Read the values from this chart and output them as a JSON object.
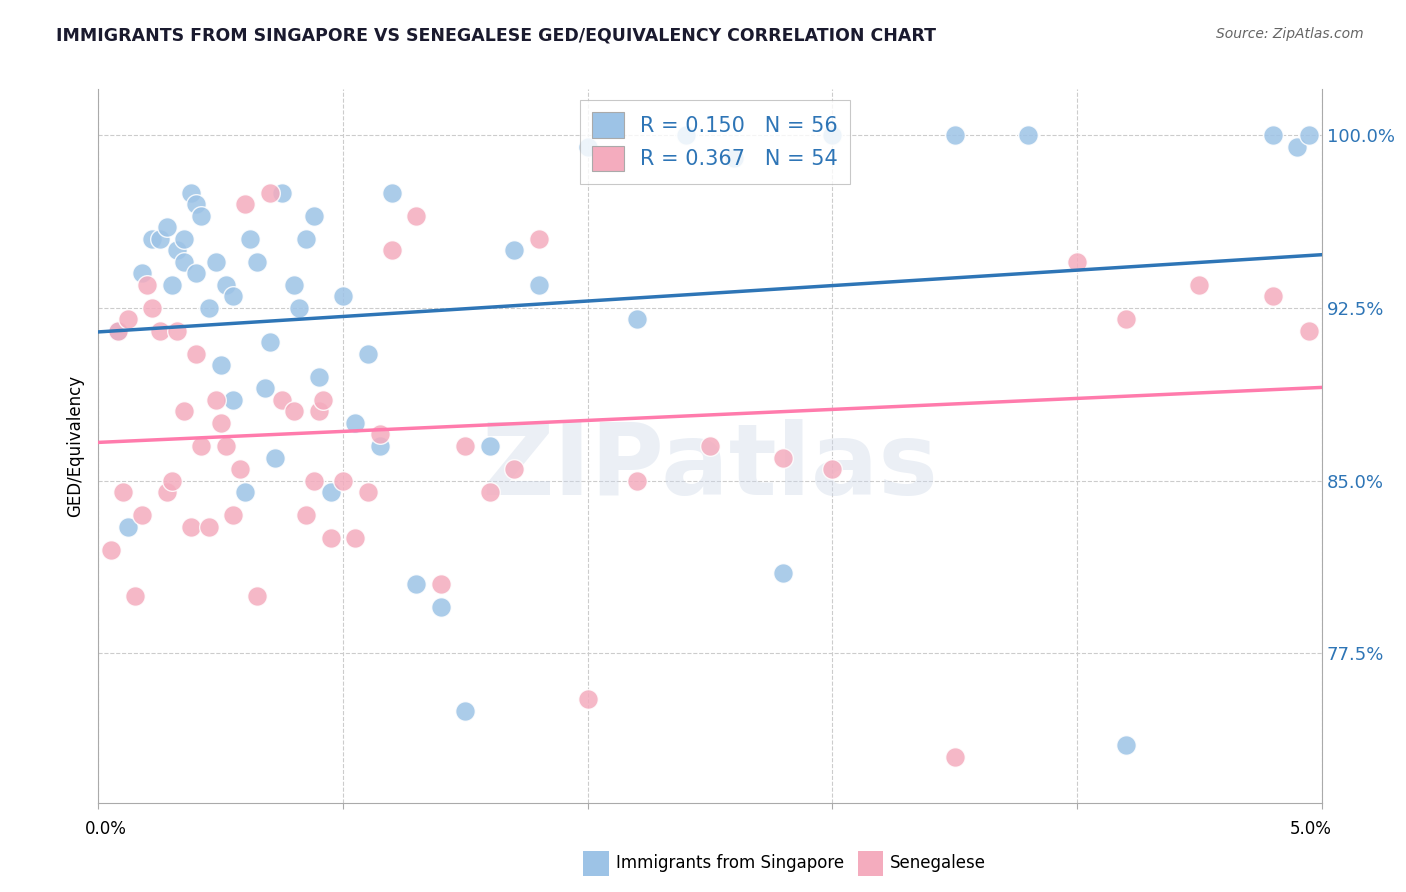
{
  "title": "IMMIGRANTS FROM SINGAPORE VS SENEGALESE GED/EQUIVALENCY CORRELATION CHART",
  "source": "Source: ZipAtlas.com",
  "ylabel": "GED/Equivalency",
  "xmin": 0.0,
  "xmax": 5.0,
  "ymin": 71.0,
  "ymax": 102.0,
  "color_blue": "#9DC3E6",
  "color_pink": "#F4ACBE",
  "line_blue": "#2E75B6",
  "line_pink": "#FF7BAC",
  "R_blue": 0.15,
  "N_blue": 56,
  "R_pink": 0.367,
  "N_pink": 54,
  "legend_label_blue": "Immigrants from Singapore",
  "legend_label_pink": "Senegalese",
  "blue_x": [
    0.08,
    0.12,
    0.18,
    0.22,
    0.25,
    0.28,
    0.3,
    0.32,
    0.35,
    0.35,
    0.38,
    0.4,
    0.4,
    0.42,
    0.45,
    0.48,
    0.5,
    0.52,
    0.55,
    0.55,
    0.6,
    0.62,
    0.65,
    0.68,
    0.7,
    0.72,
    0.75,
    0.8,
    0.82,
    0.85,
    0.88,
    0.9,
    0.95,
    1.0,
    1.05,
    1.1,
    1.15,
    1.2,
    1.3,
    1.4,
    1.5,
    1.6,
    1.7,
    1.8,
    2.0,
    2.2,
    2.4,
    2.6,
    2.8,
    3.0,
    3.5,
    3.8,
    4.2,
    4.8,
    4.9,
    4.95
  ],
  "blue_y": [
    91.5,
    83.0,
    94.0,
    95.5,
    95.5,
    96.0,
    93.5,
    95.0,
    95.5,
    94.5,
    97.5,
    97.0,
    94.0,
    96.5,
    92.5,
    94.5,
    90.0,
    93.5,
    88.5,
    93.0,
    84.5,
    95.5,
    94.5,
    89.0,
    91.0,
    86.0,
    97.5,
    93.5,
    92.5,
    95.5,
    96.5,
    89.5,
    84.5,
    93.0,
    87.5,
    90.5,
    86.5,
    97.5,
    80.5,
    79.5,
    75.0,
    86.5,
    95.0,
    93.5,
    99.5,
    92.0,
    100.0,
    99.0,
    81.0,
    100.0,
    100.0,
    100.0,
    73.5,
    100.0,
    99.5,
    100.0
  ],
  "pink_x": [
    0.05,
    0.08,
    0.1,
    0.12,
    0.15,
    0.18,
    0.2,
    0.22,
    0.25,
    0.28,
    0.3,
    0.32,
    0.35,
    0.38,
    0.4,
    0.42,
    0.45,
    0.48,
    0.5,
    0.52,
    0.55,
    0.58,
    0.6,
    0.65,
    0.7,
    0.75,
    0.8,
    0.85,
    0.88,
    0.9,
    0.92,
    0.95,
    1.0,
    1.05,
    1.1,
    1.15,
    1.2,
    1.3,
    1.4,
    1.5,
    1.6,
    1.7,
    1.8,
    2.0,
    2.2,
    2.5,
    2.8,
    3.0,
    3.5,
    4.0,
    4.2,
    4.5,
    4.8,
    4.95
  ],
  "pink_y": [
    82.0,
    91.5,
    84.5,
    92.0,
    80.0,
    83.5,
    93.5,
    92.5,
    91.5,
    84.5,
    85.0,
    91.5,
    88.0,
    83.0,
    90.5,
    86.5,
    83.0,
    88.5,
    87.5,
    86.5,
    83.5,
    85.5,
    97.0,
    80.0,
    97.5,
    88.5,
    88.0,
    83.5,
    85.0,
    88.0,
    88.5,
    82.5,
    85.0,
    82.5,
    84.5,
    87.0,
    95.0,
    96.5,
    80.5,
    86.5,
    84.5,
    85.5,
    95.5,
    75.5,
    85.0,
    86.5,
    86.0,
    85.5,
    73.0,
    94.5,
    92.0,
    93.5,
    93.0,
    91.5
  ],
  "ytick_positions": [
    77.5,
    85.0,
    92.5,
    100.0
  ],
  "ytick_labels": [
    "77.5%",
    "85.0%",
    "92.5%",
    "100.0%"
  ],
  "xtick_positions": [
    0.0,
    1.0,
    2.0,
    3.0,
    4.0,
    5.0
  ]
}
